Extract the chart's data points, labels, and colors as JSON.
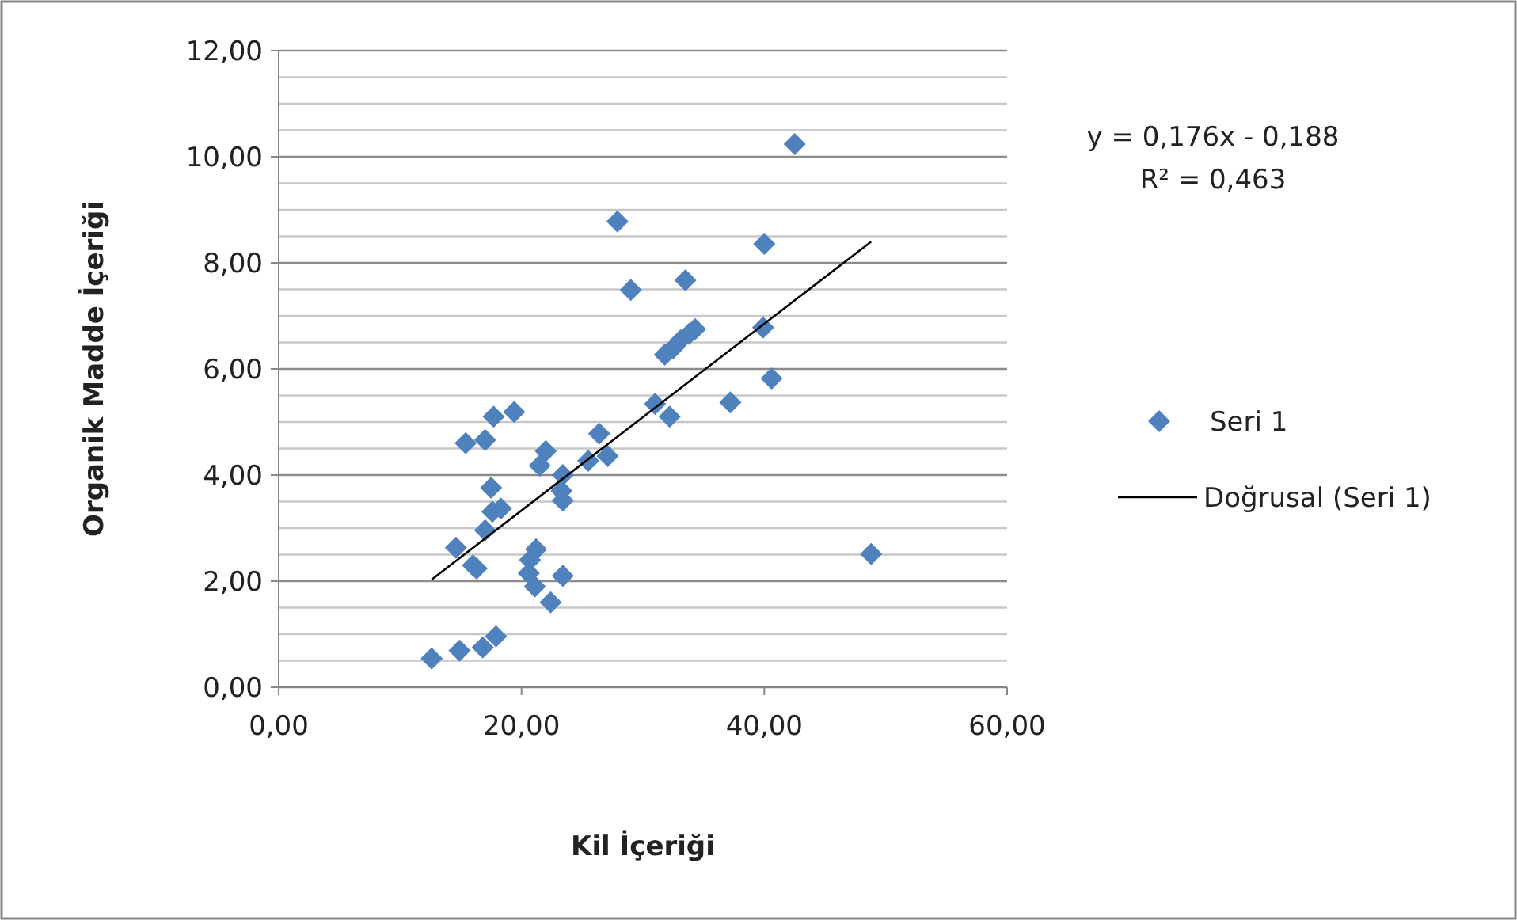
{
  "chart_data": {
    "type": "scatter",
    "xlabel": "Kil İçeriği",
    "ylabel": "Organik Madde İçeriği",
    "annotations": [
      "y = 0,176x - 0,188",
      "R² = 0,463"
    ],
    "xlim": [
      0,
      60
    ],
    "ylim": [
      0,
      12
    ],
    "xticks": [
      {
        "value": 0,
        "label": "0,00"
      },
      {
        "value": 20,
        "label": "20,00"
      },
      {
        "value": 40,
        "label": "40,00"
      },
      {
        "value": 60,
        "label": "60,00"
      }
    ],
    "yticks": [
      {
        "value": 0,
        "label": "0,00"
      },
      {
        "value": 0.5,
        "label": null
      },
      {
        "value": 1,
        "label": null
      },
      {
        "value": 1.5,
        "label": null
      },
      {
        "value": 2,
        "label": "2,00"
      },
      {
        "value": 2.5,
        "label": null
      },
      {
        "value": 3,
        "label": null
      },
      {
        "value": 3.5,
        "label": null
      },
      {
        "value": 4,
        "label": "4,00"
      },
      {
        "value": 4.5,
        "label": null
      },
      {
        "value": 5,
        "label": null
      },
      {
        "value": 5.5,
        "label": null
      },
      {
        "value": 6,
        "label": "6,00"
      },
      {
        "value": 6.5,
        "label": null
      },
      {
        "value": 7,
        "label": null
      },
      {
        "value": 7.5,
        "label": null
      },
      {
        "value": 8,
        "label": "8,00"
      },
      {
        "value": 8.5,
        "label": null
      },
      {
        "value": 9,
        "label": null
      },
      {
        "value": 9.5,
        "label": null
      },
      {
        "value": 10,
        "label": "10,00"
      },
      {
        "value": 10.5,
        "label": null
      },
      {
        "value": 11,
        "label": null
      },
      {
        "value": 11.5,
        "label": null
      },
      {
        "value": 12,
        "label": "12,00"
      }
    ],
    "grid": "y",
    "legend": "right",
    "marker": "diamond",
    "series": [
      {
        "name": "Seri 1",
        "color": "#4f81bd",
        "x": [
          12.6,
          14.9,
          16.8,
          17.9,
          14.6,
          16.3,
          16.0,
          17.0,
          17.6,
          18.3,
          17.5,
          15.4,
          17.0,
          17.7,
          19.4,
          21.2,
          20.7,
          20.6,
          21.1,
          22.4,
          23.4,
          21.5,
          22.0,
          23.4,
          23.3,
          23.4,
          25.5,
          26.4,
          27.1,
          27.9,
          29.0,
          33.5,
          31.8,
          32.5,
          33.1,
          33.8,
          34.3,
          31.0,
          32.2,
          37.2,
          40.0,
          39.9,
          40.6,
          42.5,
          48.8
        ],
        "values": [
          0.54,
          0.69,
          0.75,
          0.96,
          2.63,
          2.24,
          2.3,
          2.96,
          3.31,
          3.37,
          3.76,
          4.6,
          4.66,
          5.1,
          5.19,
          2.6,
          2.4,
          2.15,
          1.9,
          1.6,
          2.1,
          4.18,
          4.45,
          4.0,
          3.7,
          3.52,
          4.27,
          4.78,
          4.36,
          8.78,
          7.49,
          7.67,
          6.27,
          6.39,
          6.54,
          6.66,
          6.75,
          5.34,
          5.1,
          5.37,
          8.36,
          6.78,
          5.82,
          10.24,
          2.51
        ]
      },
      {
        "name": "Doğrusal (Seri 1)",
        "type": "line",
        "color": "#000000",
        "marker": "none",
        "line_style": "solid",
        "x": [
          12.6,
          48.8
        ],
        "values": [
          2.03,
          8.4
        ]
      }
    ]
  }
}
